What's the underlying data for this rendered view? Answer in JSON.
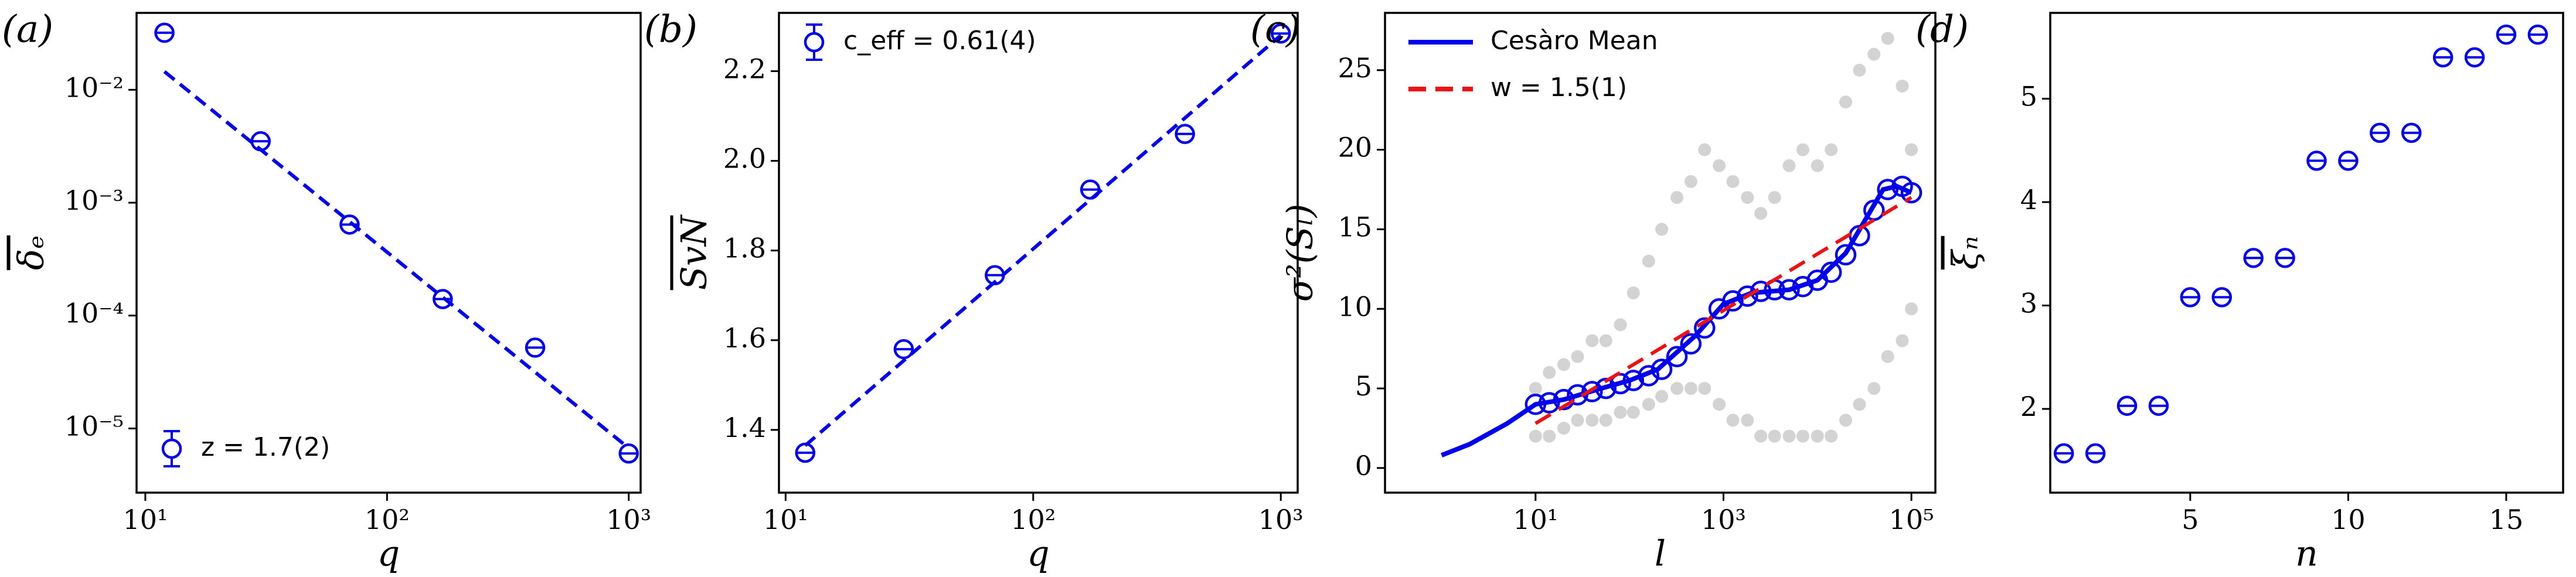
{
  "chart_data": [
    {
      "type": "scatter",
      "panel": "(a)",
      "xlabel": "q",
      "ylabel": "δₑ",
      "ylabel_overline": true,
      "xlog": true,
      "ylog": true,
      "xlim": [
        9.2,
        1120
      ],
      "ylim": [
        2.7e-06,
        0.048
      ],
      "xticks": [
        {
          "value": 10,
          "label": "10¹"
        },
        {
          "value": 100,
          "label": "10²"
        },
        {
          "value": 1000,
          "label": "10³"
        }
      ],
      "yticks": [
        {
          "value": 1e-05,
          "label": "10⁻⁵"
        },
        {
          "value": 0.0001,
          "label": "10⁻⁴"
        },
        {
          "value": 0.001,
          "label": "10⁻³"
        },
        {
          "value": 0.01,
          "label": "10⁻²"
        }
      ],
      "legend": "lower left",
      "series": [
        {
          "name": "z = 1.7(2)",
          "color": "#0000ee",
          "style": "markers",
          "x": [
            12,
            30,
            70,
            170,
            410,
            1000
          ],
          "values": [
            0.032,
            0.0035,
            0.00064,
            0.00014,
            5.2e-05,
            6e-06
          ]
        },
        {
          "color": "#0000ee",
          "style": "dashed",
          "x": [
            12,
            1000
          ],
          "values": [
            0.0145,
            6.7e-06
          ]
        }
      ]
    },
    {
      "type": "scatter",
      "panel": "(b)",
      "xlabel": "q",
      "ylabel": "SvN",
      "ylabel_overline": true,
      "xlog": true,
      "ylog": false,
      "xlim": [
        9.4,
        1170
      ],
      "ylim": [
        1.26,
        2.33
      ],
      "xticks": [
        {
          "value": 10,
          "label": "10¹"
        },
        {
          "value": 100,
          "label": "10²"
        },
        {
          "value": 1000,
          "label": "10³"
        }
      ],
      "yticks": [
        1.4,
        1.6,
        1.8,
        {
          "value": 2,
          "label": "2.0"
        },
        2.2
      ],
      "legend": "upper left",
      "series": [
        {
          "name": "c_eff = 0.61(4)",
          "color": "#0000ee",
          "style": "markers",
          "x": [
            12,
            30,
            70,
            170,
            410,
            1000
          ],
          "values": [
            1.349,
            1.58,
            1.745,
            1.936,
            2.06,
            2.284
          ]
        },
        {
          "color": "#0000ee",
          "style": "dashed",
          "x": [
            12,
            1000
          ],
          "values": [
            1.365,
            2.28
          ]
        }
      ]
    },
    {
      "type": "line",
      "panel": "(c)",
      "xlabel": "l",
      "ylabel": "σ²(Sₗ)",
      "ylabel_overline": false,
      "xlog": true,
      "ylog": false,
      "xlim": [
        0.25,
        180000
      ],
      "ylim": [
        -1.55,
        28.6
      ],
      "xticks": [
        {
          "value": 10,
          "label": "10¹"
        },
        {
          "value": 1000,
          "label": "10³"
        },
        {
          "value": 100000,
          "label": "10⁵"
        }
      ],
      "yticks": [
        0,
        5,
        10,
        15,
        20,
        25
      ],
      "legend": "upper left",
      "series": [
        {
          "color": "#d3d3d3",
          "style": "dots",
          "x": [
            10,
            14,
            20,
            28,
            40,
            56,
            80,
            110,
            160,
            220,
            320,
            450,
            630,
            900,
            1260,
            1800,
            2500,
            3500,
            5000,
            7000,
            10000,
            14000,
            20000,
            28000,
            40000,
            56000,
            80000,
            100000
          ],
          "values": [
            5,
            6,
            6.5,
            7,
            8,
            8,
            9,
            11,
            13,
            15,
            17,
            18,
            20,
            19,
            18,
            17,
            16,
            17,
            19,
            20,
            19,
            20,
            23,
            25,
            26,
            27,
            24,
            20
          ]
        },
        {
          "color": "#d3d3d3",
          "style": "dots",
          "x": [
            10,
            14,
            20,
            28,
            40,
            56,
            80,
            110,
            160,
            220,
            320,
            450,
            630,
            900,
            1260,
            1800,
            2500,
            3500,
            5000,
            7000,
            10000,
            14000,
            20000,
            28000,
            40000,
            56000,
            80000,
            100000
          ],
          "values": [
            2,
            2,
            2.5,
            3,
            3,
            3,
            3.5,
            3.5,
            4,
            4.5,
            5,
            5,
            5,
            4,
            3,
            3,
            2,
            2,
            2,
            2,
            2,
            2,
            3,
            4,
            5,
            7,
            8,
            10
          ]
        },
        {
          "name": "Cesàro Mean",
          "color": "#0000ee",
          "style": "line",
          "x": [
            1,
            2,
            5,
            10,
            20,
            50,
            100,
            200,
            500,
            1000,
            2000,
            5000,
            10000,
            20000,
            50000,
            70000,
            100000
          ],
          "values": [
            0.8,
            1.5,
            2.8,
            4.0,
            4.3,
            5.0,
            5.5,
            6.2,
            8.3,
            10.3,
            11.0,
            11.2,
            11.8,
            13.5,
            17.5,
            17.7,
            17.3
          ]
        },
        {
          "color": "#0000ee",
          "style": "circles",
          "x": [
            10,
            14,
            20,
            28,
            40,
            56,
            80,
            110,
            160,
            220,
            320,
            450,
            630,
            900,
            1260,
            1800,
            2500,
            3500,
            5000,
            7000,
            10000,
            14000,
            20000,
            28000,
            40000,
            56000,
            80000,
            100000
          ],
          "values": [
            4.0,
            4.1,
            4.3,
            4.6,
            4.8,
            5.0,
            5.3,
            5.5,
            5.8,
            6.2,
            7.0,
            7.8,
            8.8,
            10.0,
            10.5,
            10.8,
            11.1,
            11.2,
            11.2,
            11.4,
            11.8,
            12.3,
            13.4,
            14.6,
            16.2,
            17.5,
            17.7,
            17.3
          ]
        },
        {
          "name": "w = 1.5(1)",
          "color": "#ee1111",
          "style": "dashed",
          "x": [
            10,
            100000
          ],
          "values": [
            2.8,
            17.0
          ]
        }
      ]
    },
    {
      "type": "scatter",
      "panel": "(d)",
      "xlabel": "n",
      "ylabel": "ξₙ",
      "ylabel_overline": true,
      "xlog": false,
      "ylog": false,
      "xlim": [
        0.57,
        16.8
      ],
      "ylim": [
        1.19,
        5.83
      ],
      "xticks": [
        5,
        10,
        15
      ],
      "yticks": [
        2,
        3,
        4,
        5
      ],
      "series": [
        {
          "color": "#0000ee",
          "style": "markers",
          "x": [
            1,
            2,
            3,
            4,
            5,
            6,
            7,
            8,
            9,
            10,
            11,
            12,
            13,
            14,
            15,
            16
          ],
          "values": [
            1.57,
            1.57,
            2.03,
            2.03,
            3.08,
            3.08,
            3.46,
            3.46,
            4.4,
            4.4,
            4.67,
            4.67,
            5.4,
            5.4,
            5.62,
            5.62
          ]
        }
      ]
    }
  ]
}
